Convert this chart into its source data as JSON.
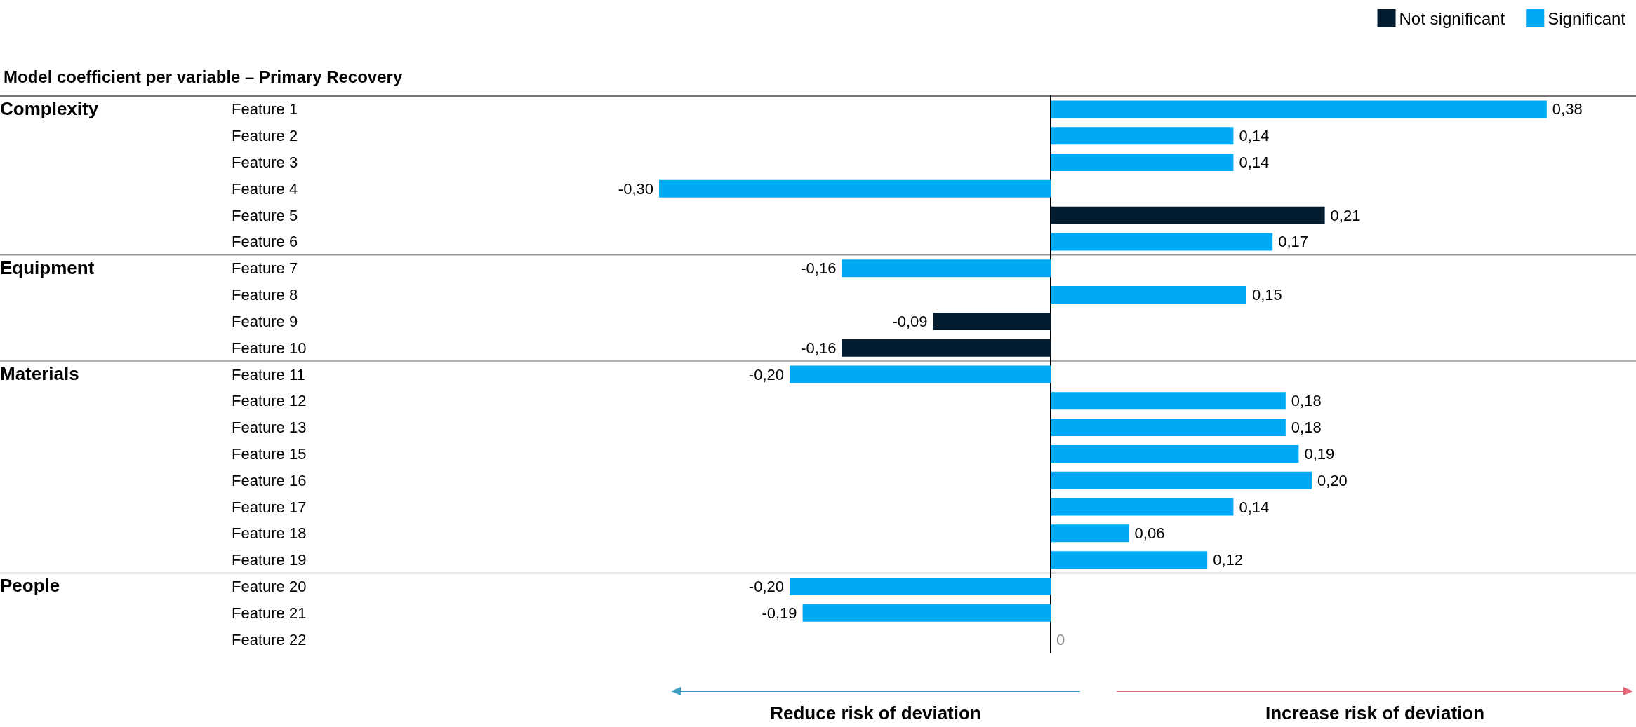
{
  "chart_data": {
    "type": "bar",
    "orientation": "horizontal",
    "title": "Model coefficient per variable – Primary Recovery",
    "categories": [
      "Feature 1",
      "Feature 2",
      "Feature 3",
      "Feature 4",
      "Feature 5",
      "Feature 6",
      "Feature 7",
      "Feature 8",
      "Feature 9",
      "Feature 10",
      "Feature 11",
      "Feature 12",
      "Feature 13",
      "Feature 15",
      "Feature 16",
      "Feature 17",
      "Feature 18",
      "Feature 19",
      "Feature 20",
      "Feature 21",
      "Feature 22"
    ],
    "series": [
      {
        "name": "Not significant",
        "color": "#041c2f",
        "values": [
          null,
          null,
          null,
          null,
          0.21,
          null,
          null,
          null,
          -0.09,
          -0.16,
          null,
          null,
          null,
          null,
          null,
          null,
          null,
          null,
          null,
          null,
          0
        ],
        "value_labels": [
          null,
          null,
          null,
          null,
          "0,21",
          null,
          null,
          null,
          "-0,09",
          "-0,16",
          null,
          null,
          null,
          null,
          null,
          null,
          null,
          null,
          null,
          null,
          "0"
        ]
      },
      {
        "name": "Significant",
        "color": "#00a9f4",
        "values": [
          0.38,
          0.14,
          0.14,
          -0.3,
          null,
          0.17,
          -0.16,
          0.15,
          null,
          null,
          -0.2,
          0.18,
          0.18,
          0.19,
          0.2,
          0.14,
          0.06,
          0.12,
          -0.2,
          -0.19,
          null
        ],
        "value_labels": [
          "0,38",
          "0,14",
          "0,14",
          "-0,30",
          null,
          "0,17",
          "-0,16",
          "0,15",
          null,
          null,
          "-0,20",
          "0,18",
          "0,18",
          "0,19",
          "0,20",
          "0,14",
          "0,06",
          "0,12",
          "-0,20",
          "-0,19",
          null
        ]
      }
    ],
    "legend": "top right",
    "annotations": [
      "Complexity",
      "Equipment",
      "Materials",
      "People",
      "Reduce risk of deviation",
      "Increase risk of deviation"
    ]
  }
}
